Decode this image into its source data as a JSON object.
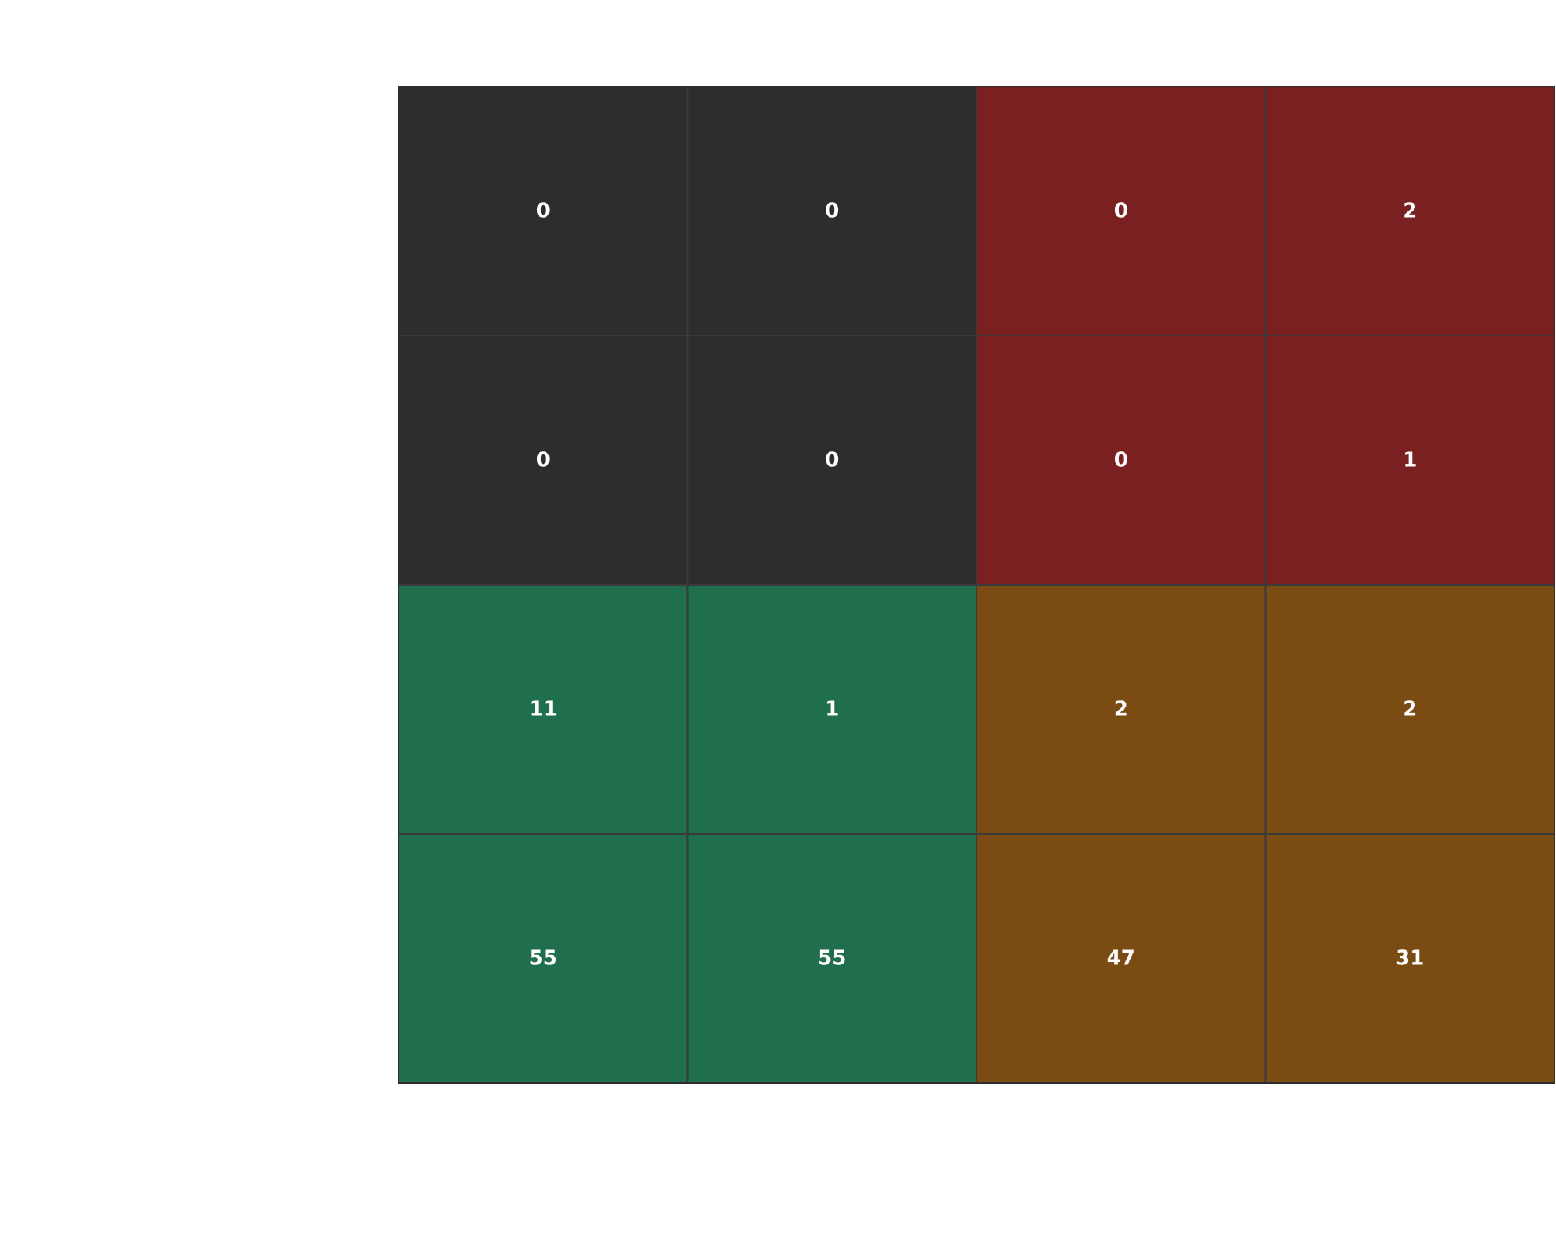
{
  "chart_data": {
    "type": "heatmap",
    "title": "",
    "xlabel": "",
    "ylabel": "",
    "grid": true,
    "colors": {
      "dark_gray": "#2d2d2d",
      "red": "#7a2020",
      "green": "#206f4c",
      "brown": "#7a4b12",
      "cell_border": "#3a3a3a",
      "label_text": "#ffffff"
    },
    "rows": [
      {
        "values": [
          0,
          0,
          0,
          2
        ],
        "cell_colors": [
          "dark_gray",
          "dark_gray",
          "red",
          "red"
        ]
      },
      {
        "values": [
          0,
          0,
          0,
          1
        ],
        "cell_colors": [
          "dark_gray",
          "dark_gray",
          "red",
          "red"
        ]
      },
      {
        "values": [
          11,
          1,
          2,
          2
        ],
        "cell_colors": [
          "green",
          "green",
          "brown",
          "brown"
        ]
      },
      {
        "values": [
          55,
          55,
          47,
          31
        ],
        "cell_colors": [
          "green",
          "green",
          "brown",
          "brown"
        ]
      }
    ]
  }
}
